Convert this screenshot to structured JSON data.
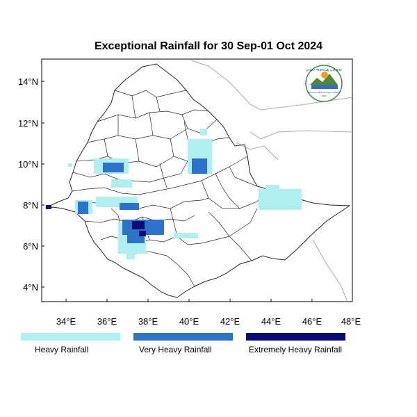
{
  "title": "Exceptional Rainfall for 30 Sep-01 Oct 2024",
  "map": {
    "lon_range": [
      33,
      48.1
    ],
    "lat_range": [
      3.2,
      15
    ],
    "lon_ticks": [
      "34°E",
      "36°E",
      "38°E",
      "40°E",
      "42°E",
      "44°E",
      "46°E",
      "48°E"
    ],
    "lat_ticks": [
      "4°N",
      "6°N",
      "8°N",
      "10°N",
      "12°N",
      "14°N"
    ]
  },
  "legend": [
    {
      "label": "Heavy Rainfall",
      "color": "#b0eef0"
    },
    {
      "label": "Very Heavy Rainfall",
      "color": "#2c72c8"
    },
    {
      "label": "Extremely Heavy Rainfall",
      "color": "#0b0b7a"
    }
  ],
  "logo": {
    "text_top": "ኢትዮጵያ ሚቲዎሮሎጂ ኢንስቲትዩት",
    "text_bottom": "Ethiopian Meteorology Institute",
    "year": "1980"
  }
}
